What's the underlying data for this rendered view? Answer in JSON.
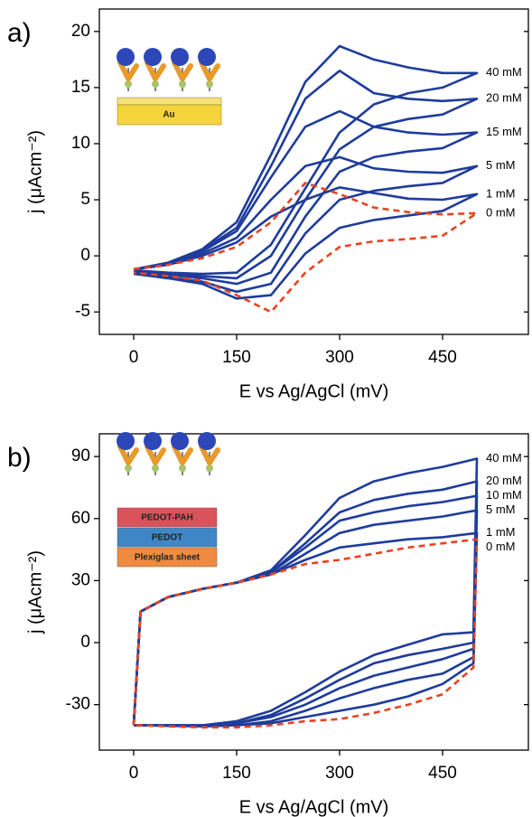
{
  "chart_data": [
    {
      "type": "line",
      "panel_label": "a)",
      "x_label": "E  vs Ag/AgCl (mV)",
      "y_label": "j (μAcm⁻²)",
      "xlim": [
        -50,
        575
      ],
      "ylim": [
        -7,
        22
      ],
      "xticks": [
        0,
        150,
        300,
        450
      ],
      "yticks": [
        -5,
        0,
        5,
        10,
        15,
        20
      ],
      "inset_labels": [
        "Au"
      ],
      "x": [
        0,
        50,
        100,
        150,
        200,
        250,
        300,
        350,
        400,
        450,
        500,
        450,
        400,
        350,
        300,
        250,
        200,
        150,
        100,
        50,
        0
      ],
      "series": [
        {
          "name": "40 mM",
          "color": "#1f3c9c",
          "line_style": "solid",
          "values": [
            -1.2,
            -0.6,
            0.6,
            3,
            9,
            15.5,
            18.7,
            17.5,
            16.8,
            16.3,
            16.3,
            15,
            14.5,
            13.5,
            11,
            6,
            1,
            -1.5,
            -1.6,
            -1.5,
            -1.3
          ]
        },
        {
          "name": "20 mM",
          "color": "#1f3c9c",
          "line_style": "solid",
          "values": [
            -1.2,
            -0.7,
            0.5,
            2.5,
            8,
            14,
            16.5,
            14.5,
            14,
            13.8,
            14,
            12.6,
            12.2,
            11.5,
            9.5,
            5,
            0,
            -2,
            -1.8,
            -1.6,
            -1.4
          ]
        },
        {
          "name": "15 mM",
          "color": "#1f3c9c",
          "line_style": "solid",
          "values": [
            -1.2,
            -0.7,
            0.4,
            2.2,
            7,
            11.5,
            12.9,
            11.5,
            11,
            10.8,
            11,
            9.6,
            9.3,
            8.8,
            7.5,
            3.5,
            -1.5,
            -2.5,
            -2,
            -1.7,
            -1.5
          ]
        },
        {
          "name": "5 mM",
          "color": "#1f3c9c",
          "line_style": "solid",
          "values": [
            -1.2,
            -0.8,
            0.2,
            1.6,
            5,
            8,
            8.8,
            7.8,
            7.5,
            7.4,
            8,
            6.5,
            6.2,
            5.8,
            5,
            2,
            -2.5,
            -3.2,
            -2.3,
            -1.9,
            -1.5
          ]
        },
        {
          "name": "1 mM",
          "color": "#1f3c9c",
          "line_style": "solid",
          "values": [
            -1.2,
            -0.8,
            0,
            1.2,
            3.5,
            5,
            6.1,
            5.6,
            5.1,
            5,
            5.5,
            4,
            3.6,
            3.2,
            2.5,
            0.2,
            -3.5,
            -3.8,
            -2.5,
            -2,
            -1.6
          ]
        },
        {
          "name": "0 mM",
          "color": "#e8431f",
          "line_style": "dashed",
          "values": [
            -1.2,
            -0.8,
            -0.2,
            0.8,
            3,
            6.5,
            5.5,
            4.3,
            3.9,
            3.7,
            3.8,
            1.8,
            1.5,
            1.3,
            0.8,
            -1.5,
            -5,
            -3.5,
            -2.2,
            -1.8,
            -1.5
          ]
        }
      ]
    },
    {
      "type": "line",
      "panel_label": "b)",
      "x_label": "E  vs Ag/AgCl (mV)",
      "y_label": "j (μAcm⁻²)",
      "xlim": [
        -50,
        575
      ],
      "ylim": [
        -52,
        101
      ],
      "xticks": [
        0,
        150,
        300,
        450
      ],
      "yticks": [
        -30,
        0,
        30,
        60,
        90
      ],
      "inset_labels": [
        "PEDOT-PAH",
        "PEDOT",
        "Plexiglas sheet"
      ],
      "x": [
        0,
        10,
        50,
        100,
        150,
        200,
        250,
        300,
        350,
        400,
        450,
        500,
        495,
        450,
        400,
        350,
        300,
        250,
        200,
        150,
        100,
        50,
        10,
        0
      ],
      "series": [
        {
          "name": "40 mM",
          "color": "#1f3c9c",
          "line_style": "solid",
          "values": [
            -40,
            15,
            22,
            26,
            29,
            35,
            52,
            70,
            78,
            82,
            85,
            89,
            5,
            4,
            -1,
            -6,
            -14,
            -24,
            -33,
            -38,
            -40,
            -40,
            -40,
            -40
          ]
        },
        {
          "name": "20 mM",
          "color": "#1f3c9c",
          "line_style": "solid",
          "values": [
            -40,
            15,
            22,
            26,
            29,
            34,
            48,
            63,
            69,
            72,
            74,
            78,
            0,
            -3,
            -6,
            -10,
            -18,
            -27,
            -35,
            -39,
            -40,
            -40,
            -40,
            -40
          ]
        },
        {
          "name": "10 mM",
          "color": "#1f3c9c",
          "line_style": "solid",
          "values": [
            -40,
            15,
            22,
            26,
            29,
            34,
            46,
            59,
            63,
            66,
            68,
            71,
            -3,
            -8,
            -12,
            -16,
            -22,
            -30,
            -36,
            -39,
            -40,
            -40,
            -40,
            -40
          ]
        },
        {
          "name": "5 mM",
          "color": "#1f3c9c",
          "line_style": "solid",
          "values": [
            -40,
            15,
            22,
            26,
            29,
            33,
            43,
            53,
            57,
            59,
            61,
            64,
            -7,
            -15,
            -18,
            -22,
            -27,
            -33,
            -38,
            -40,
            -40.5,
            -40,
            -40,
            -40
          ]
        },
        {
          "name": "1 mM",
          "color": "#1f3c9c",
          "line_style": "solid",
          "values": [
            -40,
            15,
            22,
            26,
            29,
            33,
            40,
            46,
            48,
            50,
            51,
            53,
            -10,
            -20,
            -26,
            -30,
            -33,
            -36,
            -39,
            -40,
            -40.5,
            -40.3,
            -40,
            -40
          ]
        },
        {
          "name": "0 mM",
          "color": "#e8431f",
          "line_style": "dashed",
          "values": [
            -40,
            15,
            22,
            26,
            29,
            33,
            38,
            40,
            43,
            46,
            48,
            50,
            -12,
            -25,
            -30,
            -34,
            -37,
            -38,
            -40,
            -41,
            -41,
            -40.5,
            -40,
            -40
          ]
        }
      ]
    }
  ]
}
